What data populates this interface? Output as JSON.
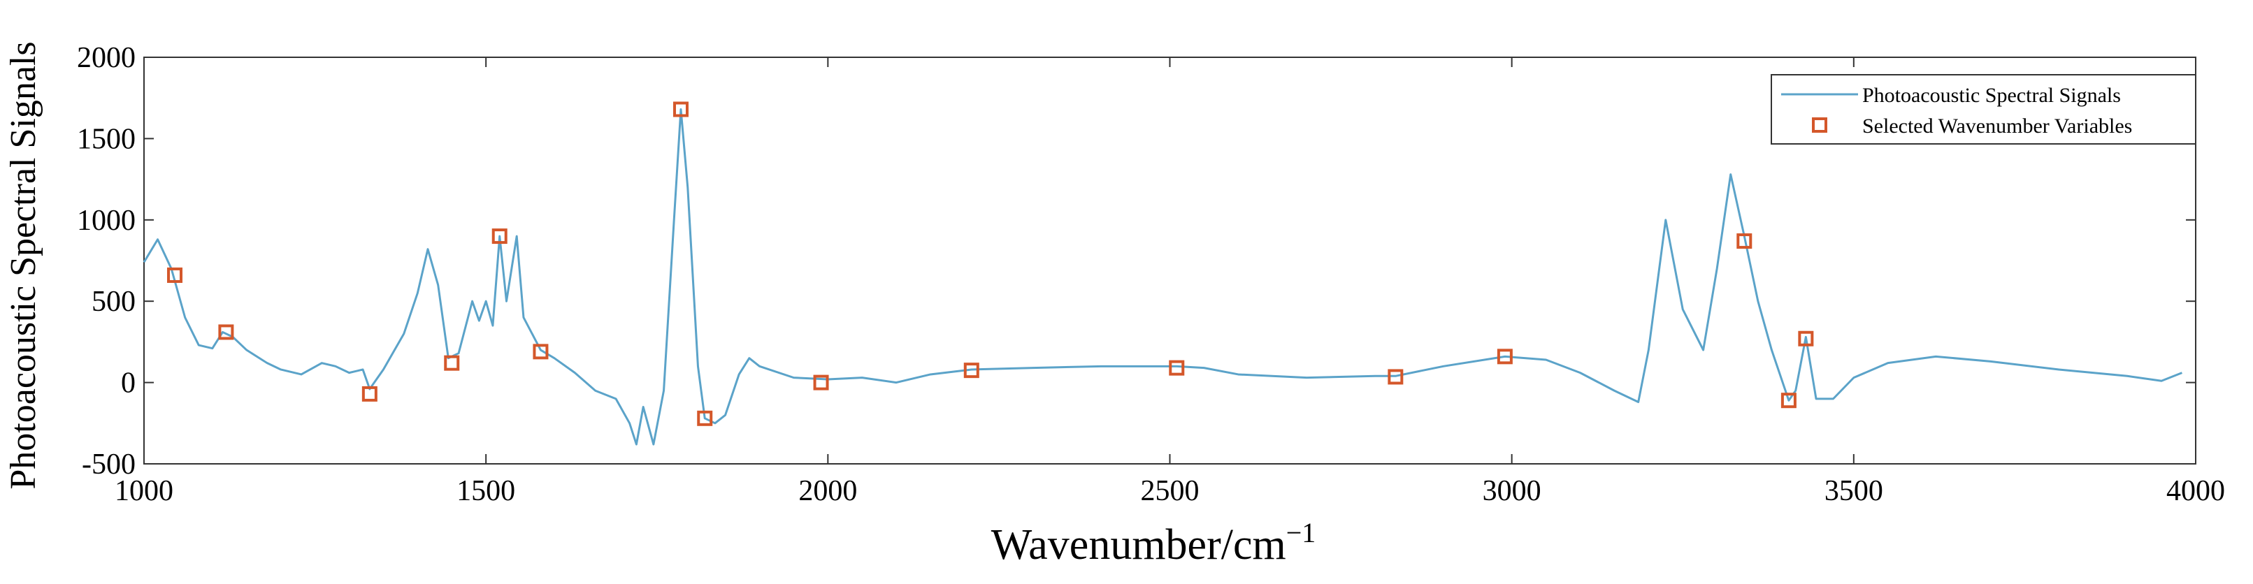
{
  "chart_data": {
    "type": "line",
    "xlabel": "Wavenumber/cm",
    "xlabel_sup": "−1",
    "ylabel": "Photoacoustic Spectral Signals",
    "xlim": [
      1000,
      4000
    ],
    "xticks": [
      1000,
      1500,
      2000,
      2500,
      3000,
      3500,
      4000
    ],
    "ylim": [
      -500,
      2000
    ],
    "yticks": [
      -500,
      0,
      500,
      1000,
      1500,
      2000
    ],
    "legend": "upper right",
    "series": [
      {
        "name": "Photoacoustic Spectral Signals",
        "type": "line",
        "color": "#5ba3c9",
        "x": [
          1000,
          1020,
          1040,
          1060,
          1080,
          1100,
          1115,
          1130,
          1150,
          1180,
          1200,
          1230,
          1260,
          1280,
          1300,
          1320,
          1330,
          1350,
          1380,
          1400,
          1415,
          1430,
          1445,
          1460,
          1480,
          1490,
          1500,
          1510,
          1520,
          1530,
          1545,
          1555,
          1580,
          1600,
          1630,
          1660,
          1690,
          1710,
          1720,
          1730,
          1745,
          1760,
          1775,
          1785,
          1795,
          1810,
          1820,
          1835,
          1850,
          1870,
          1885,
          1900,
          1950,
          2000,
          2050,
          2100,
          2150,
          2210,
          2300,
          2400,
          2510,
          2550,
          2600,
          2700,
          2800,
          2830,
          2900,
          2990,
          3050,
          3100,
          3150,
          3185,
          3200,
          3225,
          3250,
          3280,
          3300,
          3320,
          3340,
          3360,
          3380,
          3405,
          3415,
          3430,
          3445,
          3470,
          3500,
          3550,
          3620,
          3700,
          3800,
          3900,
          3950,
          3980
        ],
        "values": [
          740,
          880,
          700,
          400,
          230,
          210,
          310,
          280,
          200,
          120,
          80,
          50,
          120,
          100,
          60,
          80,
          -40,
          80,
          300,
          550,
          820,
          600,
          150,
          180,
          500,
          380,
          500,
          350,
          900,
          500,
          900,
          400,
          200,
          150,
          60,
          -50,
          -100,
          -250,
          -380,
          -150,
          -380,
          -50,
          1000,
          1680,
          1200,
          100,
          -220,
          -250,
          -200,
          50,
          150,
          100,
          30,
          20,
          30,
          0,
          50,
          80,
          90,
          100,
          100,
          90,
          50,
          30,
          40,
          40,
          100,
          160,
          140,
          60,
          -50,
          -120,
          200,
          1000,
          450,
          200,
          700,
          1280,
          900,
          500,
          200,
          -110,
          -50,
          280,
          -100,
          -100,
          30,
          120,
          160,
          130,
          80,
          40,
          10,
          60
        ]
      },
      {
        "name": "Selected Wavenumber Variables",
        "type": "scatter",
        "color": "#d4572a",
        "x": [
          1045,
          1120,
          1330,
          1450,
          1520,
          1580,
          1785,
          1820,
          1990,
          2210,
          2510,
          2830,
          2990,
          3340,
          3405,
          3430
        ],
        "values": [
          660,
          310,
          -70,
          120,
          900,
          190,
          1680,
          -220,
          0,
          75,
          90,
          35,
          160,
          870,
          -110,
          270
        ]
      }
    ]
  }
}
